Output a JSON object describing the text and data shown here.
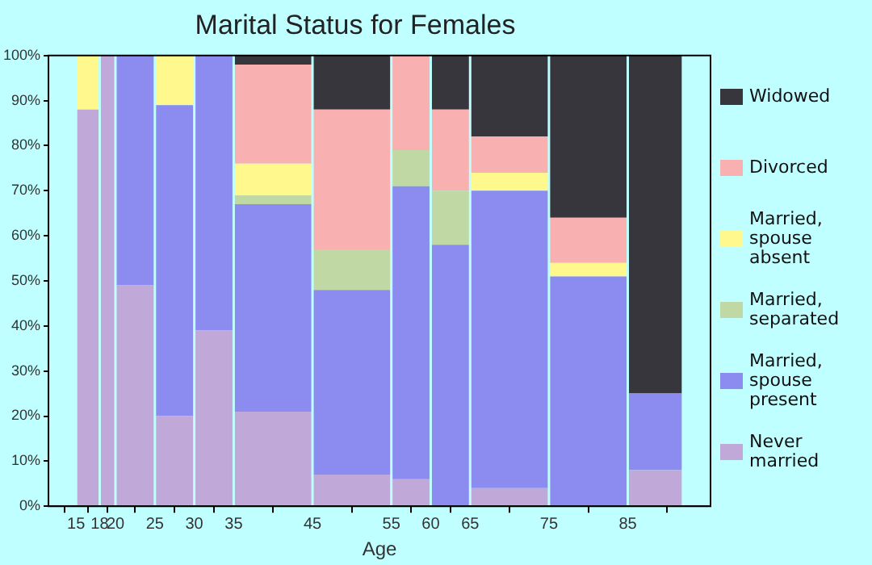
{
  "chart_data": {
    "type": "bar",
    "title": "Marital Status for Females",
    "xlabel": "Age",
    "stacked": true,
    "grid": false,
    "legend": "right",
    "x": [
      16.5,
      19,
      22.5,
      27.5,
      32.5,
      40,
      50,
      57.5,
      62.5,
      70,
      80,
      88.5
    ],
    "xlim": [
      15,
      92
    ],
    "xticks": [
      15,
      18,
      20,
      25,
      30,
      35,
      45,
      55,
      60,
      65,
      75,
      85
    ],
    "ylim": [
      0,
      100
    ],
    "yticks": [
      {
        "value": 0,
        "label": "0%"
      },
      {
        "value": 10,
        "label": "10%"
      },
      {
        "value": 20,
        "label": "20%"
      },
      {
        "value": 30,
        "label": "30%"
      },
      {
        "value": 40,
        "label": "40%"
      },
      {
        "value": 50,
        "label": "50%"
      },
      {
        "value": 60,
        "label": "60%"
      },
      {
        "value": 70,
        "label": "70%"
      },
      {
        "value": 80,
        "label": "80%"
      },
      {
        "value": 90,
        "label": "90%"
      },
      {
        "value": 100,
        "label": "100%"
      }
    ],
    "series": [
      {
        "name": "Never married",
        "color": "#c0a8d8",
        "values": [
          88,
          100,
          49,
          20,
          39,
          21,
          7,
          6,
          0,
          4,
          0,
          8
        ]
      },
      {
        "name": "Married, spouse present",
        "color": "#8c8cf0",
        "values": [
          0,
          0,
          51,
          69,
          61,
          46,
          41,
          65,
          58,
          66,
          51,
          17
        ]
      },
      {
        "name": "Married, separated",
        "color": "#c0d8a4",
        "values": [
          0,
          0,
          0,
          0,
          0,
          2,
          9,
          8,
          12,
          0,
          0,
          0
        ]
      },
      {
        "name": "Married, spouse absent",
        "color": "#fff88c",
        "values": [
          12,
          0,
          0,
          11,
          0,
          7,
          0,
          0,
          0,
          4,
          3,
          0
        ]
      },
      {
        "name": "Divorced",
        "color": "#f8b0b0",
        "values": [
          0,
          0,
          0,
          0,
          0,
          22,
          31,
          21,
          18,
          8,
          10,
          0
        ]
      },
      {
        "name": "Widowed",
        "color": "#36363c",
        "values": [
          0,
          0,
          0,
          0,
          0,
          2,
          12,
          0,
          12,
          18,
          36,
          75
        ]
      }
    ]
  }
}
